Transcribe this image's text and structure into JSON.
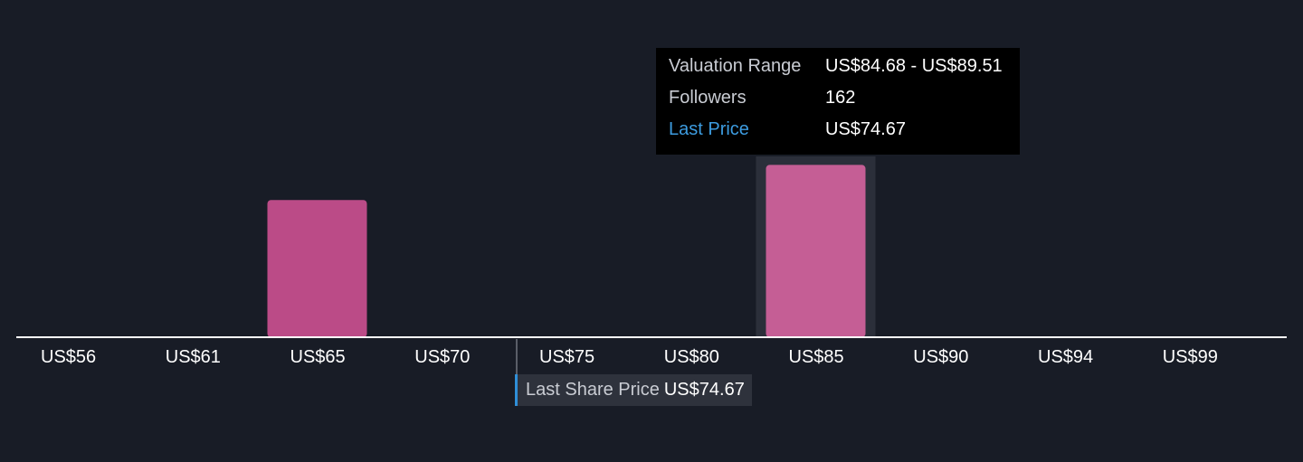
{
  "chart_data": {
    "type": "bar",
    "categories": [
      "US$56",
      "US$61",
      "US$65",
      "US$70",
      "US$75",
      "US$80",
      "US$85",
      "US$90",
      "US$94",
      "US$99"
    ],
    "values": [
      0,
      0,
      129,
      0,
      0,
      0,
      162,
      0,
      0,
      0
    ],
    "ylim": [
      0,
      170
    ],
    "grid": false,
    "colors": {
      "bar": "#bb4b87",
      "bar_highlight": "#c55e95",
      "highlight_band": "#2b2f3a",
      "axis": "#ffffff",
      "price_line": "#5a5e68",
      "background": "#181c26"
    },
    "highlight_index": 6,
    "last_price": 74.67
  },
  "tooltip": {
    "rows": [
      {
        "key": "Valuation Range",
        "value": "US$84.68 - US$89.51"
      },
      {
        "key": "Followers",
        "value": "162"
      },
      {
        "key": "Last Price",
        "value": "US$74.67"
      }
    ]
  },
  "price_flag": {
    "label": "Last Share Price",
    "value": "US$74.67"
  }
}
